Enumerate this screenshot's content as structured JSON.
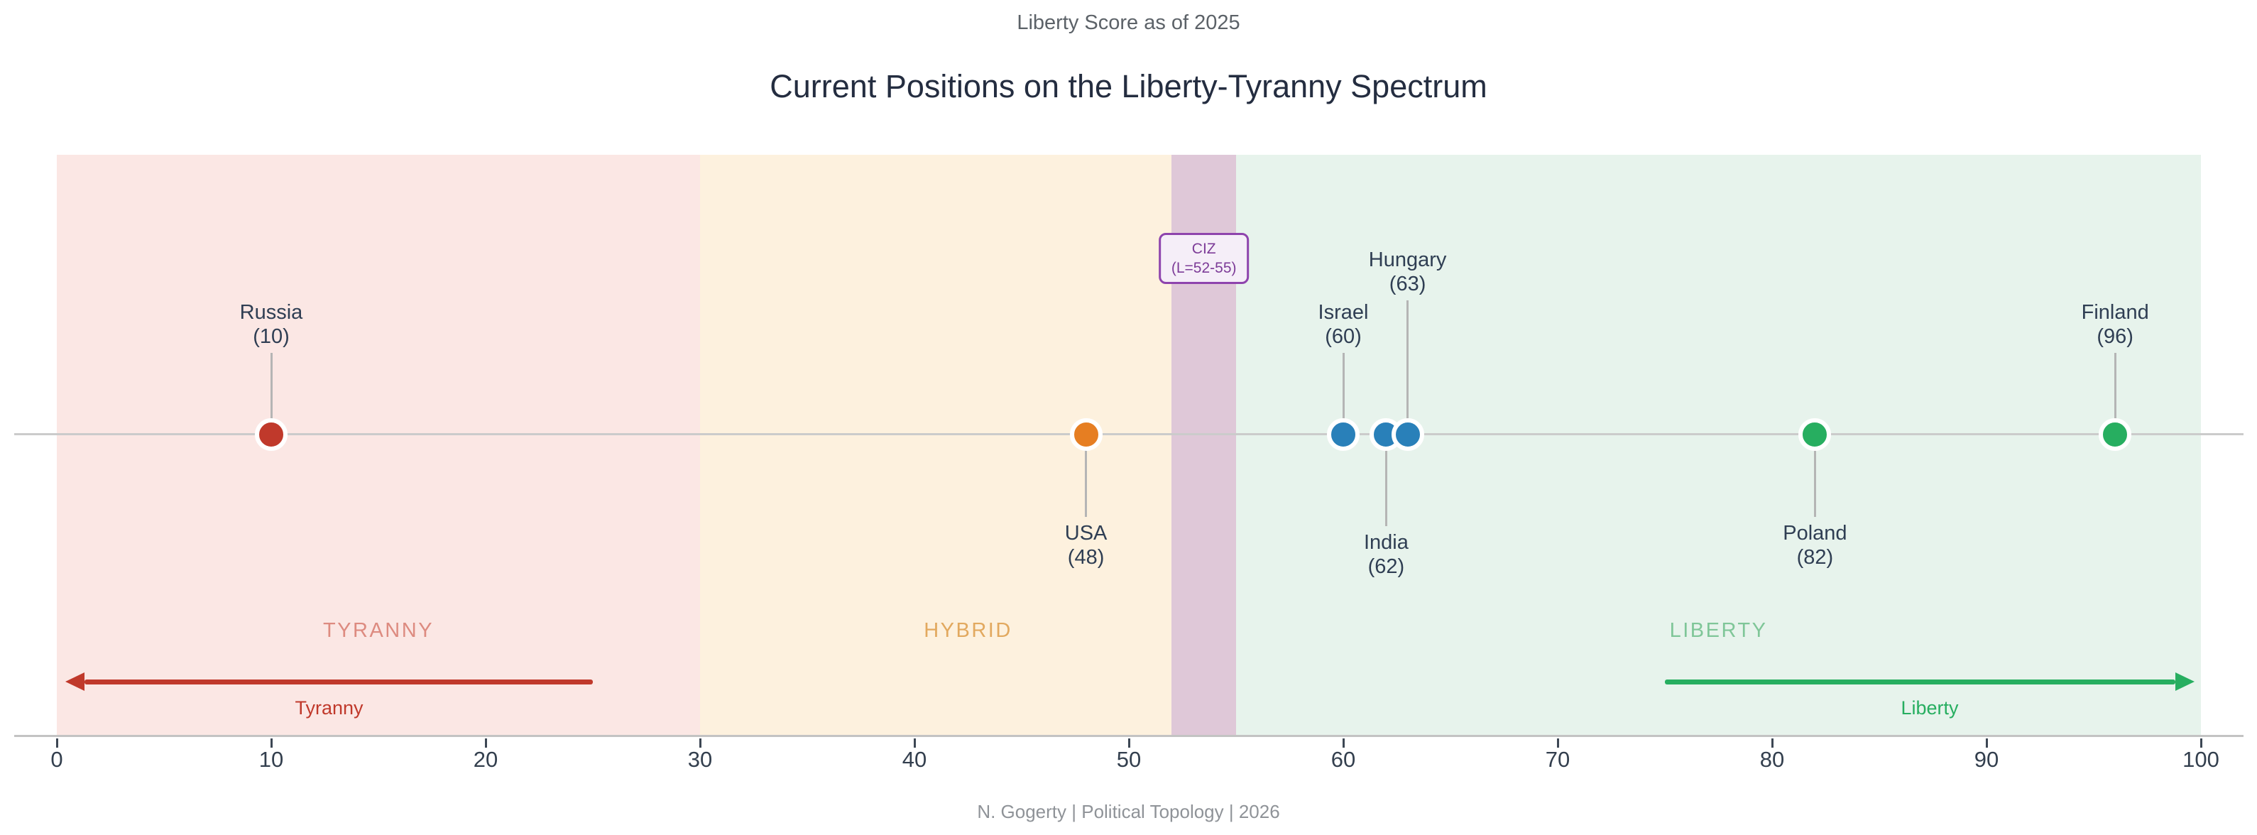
{
  "header": {
    "subtitle": "Liberty Score as of 2025",
    "title": "Current Positions on the Liberty-Tyranny Spectrum"
  },
  "footer": {
    "credit": "N. Gogerty  |  Political Topology  |  2026"
  },
  "chart_data": {
    "type": "scatter",
    "title": "Current Positions on the Liberty-Tyranny Spectrum",
    "subtitle": "Liberty Score as of 2025",
    "axis": {
      "label": "Liberty Score",
      "min": 0,
      "max": 100,
      "ticks": [
        0,
        10,
        20,
        30,
        40,
        50,
        60,
        70,
        80,
        90,
        100
      ]
    },
    "points": [
      {
        "name": "Russia",
        "value": 10,
        "color": "#c0392b",
        "label_side": "above",
        "label_offset": 0
      },
      {
        "name": "USA",
        "value": 48,
        "color": "#e67e22",
        "label_side": "below",
        "label_offset": 0
      },
      {
        "name": "Israel",
        "value": 60,
        "color": "#2980b9",
        "label_side": "above",
        "label_offset": 0
      },
      {
        "name": "India",
        "value": 62,
        "color": "#2980b9",
        "label_side": "below",
        "label_offset": 13
      },
      {
        "name": "Hungary",
        "value": 63,
        "color": "#2980b9",
        "label_side": "above",
        "label_offset": 74
      },
      {
        "name": "Poland",
        "value": 82,
        "color": "#27ae60",
        "label_side": "below",
        "label_offset": 0
      },
      {
        "name": "Finland",
        "value": 96,
        "color": "#27ae60",
        "label_side": "above",
        "label_offset": 0
      }
    ],
    "zones": [
      {
        "name": "TYRANNY",
        "range": [
          0,
          30
        ],
        "fill": "#fbe7e4",
        "label_color": "#dd8b80",
        "label_x": 15
      },
      {
        "name": "HYBRID",
        "range": [
          30,
          52
        ],
        "fill": "#fdf1de",
        "label_color": "#e2a95f",
        "label_x": 42.5
      },
      {
        "name": "CIZ",
        "range": [
          52,
          55
        ],
        "fill": "#dfc8d8"
      },
      {
        "name": "LIBERTY",
        "range": [
          55,
          100
        ],
        "fill": "#e7f3ec",
        "label_color": "#7fc698",
        "label_x": 77.5
      }
    ],
    "ciz_annotation": {
      "line1": "CIZ",
      "line2": "(L=52-55)",
      "x": 53.5,
      "text_color": "#7d3c98",
      "border_color": "#8e44ad",
      "bg": "#f5eef8"
    },
    "arrows": [
      {
        "label": "Tyranny",
        "direction": "left",
        "color": "#c0392b",
        "tail": 25,
        "tip": 0.4
      },
      {
        "label": "Liberty",
        "direction": "right",
        "color": "#27ae60",
        "tail": 75,
        "tip": 99.7
      }
    ]
  }
}
